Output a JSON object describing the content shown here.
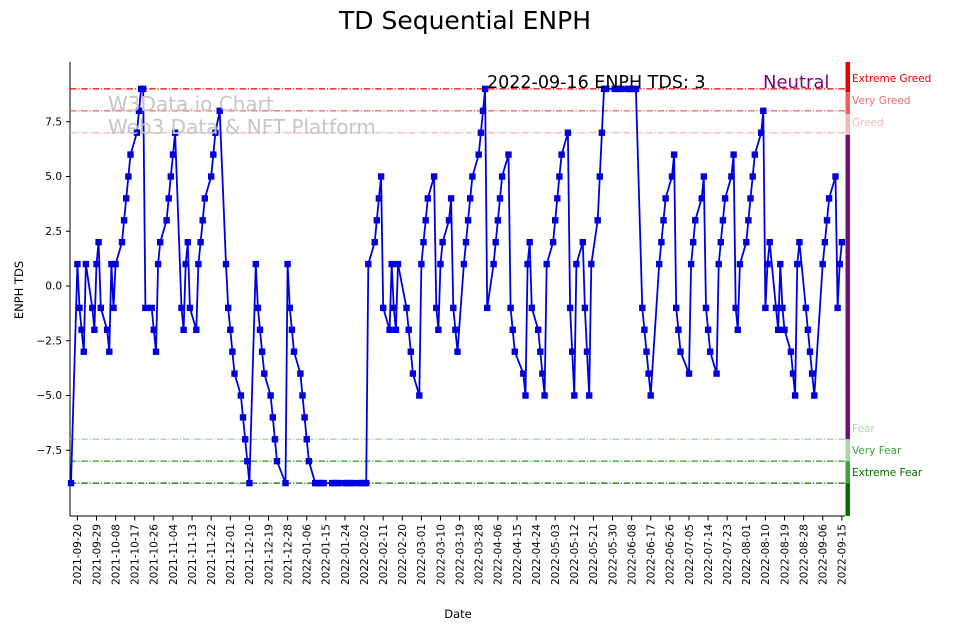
{
  "title": "TD Sequential ENPH",
  "annotation": {
    "text": "2022-09-16 ENPH TDS: 3",
    "sentiment": "Neutral",
    "sentiment_color": "#800080"
  },
  "watermark": {
    "line1": "W3Data.io Chart",
    "line2": "Web3 Data & NFT Platform"
  },
  "chart_data": {
    "type": "line",
    "title": "TD Sequential ENPH",
    "xlabel": "Date",
    "ylabel": "ENPH TDS",
    "ylim": [
      -10.5,
      10.3
    ],
    "grid": false,
    "line_color": "#0000dd",
    "marker_shape": "square",
    "y_ticks": [
      {
        "v": 7.5,
        "label": "7.5"
      },
      {
        "v": 5.0,
        "label": "5.0"
      },
      {
        "v": 2.5,
        "label": "2.5"
      },
      {
        "v": 0.0,
        "label": "0.0"
      },
      {
        "v": -2.5,
        "label": "−2.5"
      },
      {
        "v": -5.0,
        "label": "−5.0"
      },
      {
        "v": -7.5,
        "label": "−7.5"
      }
    ],
    "x_ticks": [
      "2021-09-20",
      "2021-09-29",
      "2021-10-08",
      "2021-10-17",
      "2021-10-26",
      "2021-11-04",
      "2021-11-13",
      "2021-11-22",
      "2021-12-01",
      "2021-12-10",
      "2021-12-19",
      "2021-12-28",
      "2022-01-06",
      "2022-01-15",
      "2022-01-24",
      "2022-02-02",
      "2022-02-11",
      "2022-02-20",
      "2022-03-01",
      "2022-03-10",
      "2022-03-19",
      "2022-03-28",
      "2022-04-06",
      "2022-04-15",
      "2022-04-24",
      "2022-05-03",
      "2022-05-12",
      "2022-05-21",
      "2022-05-30",
      "2022-06-08",
      "2022-06-17",
      "2022-06-26",
      "2022-07-05",
      "2022-07-14",
      "2022-07-23",
      "2022-08-01",
      "2022-08-10",
      "2022-08-19",
      "2022-08-28",
      "2022-09-06",
      "2022-09-15"
    ],
    "thresholds": [
      {
        "value": 9,
        "label": "Extreme Greed",
        "color": "#e60000"
      },
      {
        "value": 8,
        "label": "Very Greed",
        "color": "#f26d6d"
      },
      {
        "value": 7,
        "label": "Greed",
        "color": "#f8b8b8"
      },
      {
        "value": -7,
        "label": "Fear",
        "color": "#abd5ab"
      },
      {
        "value": -8,
        "label": "Very Fear",
        "color": "#3da23d"
      },
      {
        "value": -9,
        "label": "Extreme Fear",
        "color": "#007000"
      }
    ],
    "gauge_bar": [
      {
        "from": 10.3,
        "to": 8.85,
        "color": "#e60000"
      },
      {
        "from": 8.85,
        "to": 7.85,
        "color": "#ef6060"
      },
      {
        "from": 7.85,
        "to": 6.9,
        "color": "#f7b6b6"
      },
      {
        "from": 6.9,
        "to": -7.0,
        "color": "#730f73"
      },
      {
        "from": -7.0,
        "to": -8.0,
        "color": "#abd5ab"
      },
      {
        "from": -8.0,
        "to": -9.0,
        "color": "#3da23d"
      },
      {
        "from": -9.0,
        "to": -10.5,
        "color": "#007000"
      }
    ],
    "series": [
      [
        "2021-09-17",
        -9
      ],
      [
        "2021-09-20",
        1
      ],
      [
        "2021-09-21",
        -1
      ],
      [
        "2021-09-22",
        -2
      ],
      [
        "2021-09-23",
        -3
      ],
      [
        "2021-09-24",
        1
      ],
      [
        "2021-09-27",
        -1
      ],
      [
        "2021-09-28",
        -2
      ],
      [
        "2021-09-29",
        1
      ],
      [
        "2021-09-30",
        2
      ],
      [
        "2021-10-01",
        -1
      ],
      [
        "2021-10-04",
        -2
      ],
      [
        "2021-10-05",
        -3
      ],
      [
        "2021-10-06",
        1
      ],
      [
        "2021-10-07",
        -1
      ],
      [
        "2021-10-08",
        1
      ],
      [
        "2021-10-11",
        2
      ],
      [
        "2021-10-12",
        3
      ],
      [
        "2021-10-13",
        4
      ],
      [
        "2021-10-14",
        5
      ],
      [
        "2021-10-15",
        6
      ],
      [
        "2021-10-18",
        7
      ],
      [
        "2021-10-19",
        8
      ],
      [
        "2021-10-20",
        9
      ],
      [
        "2021-10-21",
        9
      ],
      [
        "2021-10-22",
        -1
      ],
      [
        "2021-10-25",
        -1
      ],
      [
        "2021-10-26",
        -2
      ],
      [
        "2021-10-27",
        -3
      ],
      [
        "2021-10-28",
        1
      ],
      [
        "2021-10-29",
        2
      ],
      [
        "2021-11-01",
        3
      ],
      [
        "2021-11-02",
        4
      ],
      [
        "2021-11-03",
        5
      ],
      [
        "2021-11-04",
        6
      ],
      [
        "2021-11-05",
        7
      ],
      [
        "2021-11-08",
        -1
      ],
      [
        "2021-11-09",
        -2
      ],
      [
        "2021-11-10",
        1
      ],
      [
        "2021-11-11",
        2
      ],
      [
        "2021-11-12",
        -1
      ],
      [
        "2021-11-15",
        -2
      ],
      [
        "2021-11-16",
        1
      ],
      [
        "2021-11-17",
        2
      ],
      [
        "2021-11-18",
        3
      ],
      [
        "2021-11-19",
        4
      ],
      [
        "2021-11-22",
        5
      ],
      [
        "2021-11-23",
        6
      ],
      [
        "2021-11-24",
        7
      ],
      [
        "2021-11-26",
        8
      ],
      [
        "2021-11-29",
        1
      ],
      [
        "2021-11-30",
        -1
      ],
      [
        "2021-12-01",
        -2
      ],
      [
        "2021-12-02",
        -3
      ],
      [
        "2021-12-03",
        -4
      ],
      [
        "2021-12-06",
        -5
      ],
      [
        "2021-12-07",
        -6
      ],
      [
        "2021-12-08",
        -7
      ],
      [
        "2021-12-09",
        -8
      ],
      [
        "2021-12-10",
        -9
      ],
      [
        "2021-12-13",
        1
      ],
      [
        "2021-12-14",
        -1
      ],
      [
        "2021-12-15",
        -2
      ],
      [
        "2021-12-16",
        -3
      ],
      [
        "2021-12-17",
        -4
      ],
      [
        "2021-12-20",
        -5
      ],
      [
        "2021-12-21",
        -6
      ],
      [
        "2021-12-22",
        -7
      ],
      [
        "2021-12-23",
        -8
      ],
      [
        "2021-12-27",
        -9
      ],
      [
        "2021-12-28",
        1
      ],
      [
        "2021-12-29",
        -1
      ],
      [
        "2021-12-30",
        -2
      ],
      [
        "2021-12-31",
        -3
      ],
      [
        "2022-01-03",
        -4
      ],
      [
        "2022-01-04",
        -5
      ],
      [
        "2022-01-05",
        -6
      ],
      [
        "2022-01-06",
        -7
      ],
      [
        "2022-01-07",
        -8
      ],
      [
        "2022-01-10",
        -9
      ],
      [
        "2022-01-11",
        -9
      ],
      [
        "2022-01-12",
        -9
      ],
      [
        "2022-01-13",
        -9
      ],
      [
        "2022-01-14",
        -9
      ],
      [
        "2022-01-18",
        -9
      ],
      [
        "2022-01-19",
        -9
      ],
      [
        "2022-01-20",
        -9
      ],
      [
        "2022-01-21",
        -9
      ],
      [
        "2022-01-24",
        -9
      ],
      [
        "2022-01-25",
        -9
      ],
      [
        "2022-01-26",
        -9
      ],
      [
        "2022-01-27",
        -9
      ],
      [
        "2022-01-28",
        -9
      ],
      [
        "2022-01-31",
        -9
      ],
      [
        "2022-02-01",
        -9
      ],
      [
        "2022-02-02",
        -9
      ],
      [
        "2022-02-03",
        -9
      ],
      [
        "2022-02-04",
        1
      ],
      [
        "2022-02-07",
        2
      ],
      [
        "2022-02-08",
        3
      ],
      [
        "2022-02-09",
        4
      ],
      [
        "2022-02-10",
        5
      ],
      [
        "2022-02-11",
        -1
      ],
      [
        "2022-02-14",
        -2
      ],
      [
        "2022-02-15",
        1
      ],
      [
        "2022-02-16",
        -1
      ],
      [
        "2022-02-17",
        -2
      ],
      [
        "2022-02-18",
        1
      ],
      [
        "2022-02-22",
        -1
      ],
      [
        "2022-02-23",
        -2
      ],
      [
        "2022-02-24",
        -3
      ],
      [
        "2022-02-25",
        -4
      ],
      [
        "2022-02-28",
        -5
      ],
      [
        "2022-03-01",
        1
      ],
      [
        "2022-03-02",
        2
      ],
      [
        "2022-03-03",
        3
      ],
      [
        "2022-03-04",
        4
      ],
      [
        "2022-03-07",
        5
      ],
      [
        "2022-03-08",
        -1
      ],
      [
        "2022-03-09",
        -2
      ],
      [
        "2022-03-10",
        1
      ],
      [
        "2022-03-11",
        2
      ],
      [
        "2022-03-14",
        3
      ],
      [
        "2022-03-15",
        4
      ],
      [
        "2022-03-16",
        -1
      ],
      [
        "2022-03-17",
        -2
      ],
      [
        "2022-03-18",
        -3
      ],
      [
        "2022-03-21",
        1
      ],
      [
        "2022-03-22",
        2
      ],
      [
        "2022-03-23",
        3
      ],
      [
        "2022-03-24",
        4
      ],
      [
        "2022-03-25",
        5
      ],
      [
        "2022-03-28",
        6
      ],
      [
        "2022-03-29",
        7
      ],
      [
        "2022-03-30",
        8
      ],
      [
        "2022-03-31",
        9
      ],
      [
        "2022-04-01",
        -1
      ],
      [
        "2022-04-04",
        1
      ],
      [
        "2022-04-05",
        2
      ],
      [
        "2022-04-06",
        3
      ],
      [
        "2022-04-07",
        4
      ],
      [
        "2022-04-08",
        5
      ],
      [
        "2022-04-11",
        6
      ],
      [
        "2022-04-12",
        -1
      ],
      [
        "2022-04-13",
        -2
      ],
      [
        "2022-04-14",
        -3
      ],
      [
        "2022-04-18",
        -4
      ],
      [
        "2022-04-19",
        -5
      ],
      [
        "2022-04-20",
        1
      ],
      [
        "2022-04-21",
        2
      ],
      [
        "2022-04-22",
        -1
      ],
      [
        "2022-04-25",
        -2
      ],
      [
        "2022-04-26",
        -3
      ],
      [
        "2022-04-27",
        -4
      ],
      [
        "2022-04-28",
        -5
      ],
      [
        "2022-04-29",
        1
      ],
      [
        "2022-05-02",
        2
      ],
      [
        "2022-05-03",
        3
      ],
      [
        "2022-05-04",
        4
      ],
      [
        "2022-05-05",
        5
      ],
      [
        "2022-05-06",
        6
      ],
      [
        "2022-05-09",
        7
      ],
      [
        "2022-05-10",
        -1
      ],
      [
        "2022-05-11",
        -3
      ],
      [
        "2022-05-12",
        -5
      ],
      [
        "2022-05-13",
        1
      ],
      [
        "2022-05-16",
        2
      ],
      [
        "2022-05-17",
        -1
      ],
      [
        "2022-05-18",
        -3
      ],
      [
        "2022-05-19",
        -5
      ],
      [
        "2022-05-20",
        1
      ],
      [
        "2022-05-23",
        3
      ],
      [
        "2022-05-24",
        5
      ],
      [
        "2022-05-25",
        7
      ],
      [
        "2022-05-26",
        9
      ],
      [
        "2022-05-27",
        9
      ],
      [
        "2022-05-31",
        9
      ],
      [
        "2022-06-01",
        9
      ],
      [
        "2022-06-02",
        9
      ],
      [
        "2022-06-03",
        9
      ],
      [
        "2022-06-06",
        9
      ],
      [
        "2022-06-07",
        9
      ],
      [
        "2022-06-08",
        9
      ],
      [
        "2022-06-09",
        9
      ],
      [
        "2022-06-10",
        9
      ],
      [
        "2022-06-13",
        -1
      ],
      [
        "2022-06-14",
        -2
      ],
      [
        "2022-06-15",
        -3
      ],
      [
        "2022-06-16",
        -4
      ],
      [
        "2022-06-17",
        -5
      ],
      [
        "2022-06-21",
        1
      ],
      [
        "2022-06-22",
        2
      ],
      [
        "2022-06-23",
        3
      ],
      [
        "2022-06-24",
        4
      ],
      [
        "2022-06-27",
        5
      ],
      [
        "2022-06-28",
        6
      ],
      [
        "2022-06-29",
        -1
      ],
      [
        "2022-06-30",
        -2
      ],
      [
        "2022-07-01",
        -3
      ],
      [
        "2022-07-05",
        -4
      ],
      [
        "2022-07-06",
        1
      ],
      [
        "2022-07-07",
        2
      ],
      [
        "2022-07-08",
        3
      ],
      [
        "2022-07-11",
        4
      ],
      [
        "2022-07-12",
        5
      ],
      [
        "2022-07-13",
        -1
      ],
      [
        "2022-07-14",
        -2
      ],
      [
        "2022-07-15",
        -3
      ],
      [
        "2022-07-18",
        -4
      ],
      [
        "2022-07-19",
        1
      ],
      [
        "2022-07-20",
        2
      ],
      [
        "2022-07-21",
        3
      ],
      [
        "2022-07-22",
        4
      ],
      [
        "2022-07-25",
        5
      ],
      [
        "2022-07-26",
        6
      ],
      [
        "2022-07-27",
        -1
      ],
      [
        "2022-07-28",
        -2
      ],
      [
        "2022-07-29",
        1
      ],
      [
        "2022-08-01",
        2
      ],
      [
        "2022-08-02",
        3
      ],
      [
        "2022-08-03",
        4
      ],
      [
        "2022-08-04",
        5
      ],
      [
        "2022-08-05",
        6
      ],
      [
        "2022-08-08",
        7
      ],
      [
        "2022-08-09",
        8
      ],
      [
        "2022-08-10",
        -1
      ],
      [
        "2022-08-11",
        1
      ],
      [
        "2022-08-12",
        2
      ],
      [
        "2022-08-15",
        -1
      ],
      [
        "2022-08-16",
        -2
      ],
      [
        "2022-08-17",
        1
      ],
      [
        "2022-08-18",
        -1
      ],
      [
        "2022-08-19",
        -2
      ],
      [
        "2022-08-22",
        -3
      ],
      [
        "2022-08-23",
        -4
      ],
      [
        "2022-08-24",
        -5
      ],
      [
        "2022-08-25",
        1
      ],
      [
        "2022-08-26",
        2
      ],
      [
        "2022-08-29",
        -1
      ],
      [
        "2022-08-30",
        -2
      ],
      [
        "2022-08-31",
        -3
      ],
      [
        "2022-09-01",
        -4
      ],
      [
        "2022-09-02",
        -5
      ],
      [
        "2022-09-06",
        1
      ],
      [
        "2022-09-07",
        2
      ],
      [
        "2022-09-08",
        3
      ],
      [
        "2022-09-09",
        4
      ],
      [
        "2022-09-12",
        5
      ],
      [
        "2022-09-13",
        -1
      ],
      [
        "2022-09-14",
        1
      ],
      [
        "2022-09-15",
        2
      ]
    ]
  }
}
